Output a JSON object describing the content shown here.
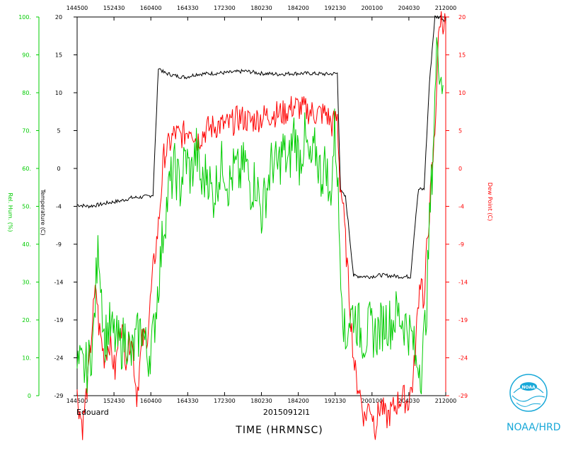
{
  "chart_data": {
    "type": "line",
    "x_ticks": [
      "144500",
      "152430",
      "160400",
      "164330",
      "172300",
      "180230",
      "184200",
      "192130",
      "200100",
      "204030",
      "212000"
    ],
    "left_axis_temp": {
      "label": "Temperature (C)",
      "ticks": [
        "20",
        "15",
        "10",
        "5",
        "0",
        "-4",
        "-9",
        "-14",
        "-19",
        "-24",
        "-29"
      ],
      "range": [
        -29,
        20
      ]
    },
    "left_axis_rh": {
      "label": "Rel. Hum. (%)",
      "ticks": [
        "100.",
        "90.",
        "80.",
        "70.",
        "60.",
        "50.",
        "40.",
        "30.",
        "20.",
        "10.",
        "0"
      ],
      "range": [
        0,
        100
      ],
      "color": "#00cc00"
    },
    "right_axis_dew": {
      "label": "Dew Point (C)",
      "ticks": [
        "20",
        "15",
        "10",
        "5",
        "0",
        "-4",
        "-9",
        "-14",
        "-19",
        "-24",
        "-29"
      ],
      "range": [
        -29,
        20
      ],
      "color": "#ff0000"
    },
    "xlabel": "TIME (HRMNSC)",
    "bottom_left_text": "Edouard",
    "bottom_center_text": "20150912I1",
    "series": [
      {
        "key": "temperature",
        "color": "#000000",
        "points": [
          [
            0,
            -4.3
          ],
          [
            2,
            -4.5
          ],
          [
            4,
            -4.3
          ],
          [
            6,
            -4.0
          ],
          [
            8,
            -3.8
          ],
          [
            10,
            -3.4
          ],
          [
            12,
            -3.3
          ],
          [
            13,
            -3.2
          ],
          [
            14,
            -3.0
          ],
          [
            15,
            13.5
          ],
          [
            16,
            12.8
          ],
          [
            18,
            12.4
          ],
          [
            20,
            12.2
          ],
          [
            22,
            12.6
          ],
          [
            25,
            12.7
          ],
          [
            28,
            12.8
          ],
          [
            31,
            13.0
          ],
          [
            34,
            12.7
          ],
          [
            37,
            12.6
          ],
          [
            40,
            12.7
          ],
          [
            43,
            12.7
          ],
          [
            46,
            12.6
          ],
          [
            48,
            12.7
          ],
          [
            48.6,
            -2.5
          ],
          [
            49.5,
            -3.3
          ],
          [
            50,
            -6.5
          ],
          [
            51,
            -13.5
          ],
          [
            54,
            -13.6
          ],
          [
            56,
            -13.4
          ],
          [
            58,
            -13.5
          ],
          [
            60,
            -13.6
          ],
          [
            61.5,
            -13.6
          ],
          [
            62.5,
            -5.5
          ],
          [
            63,
            -2.3
          ],
          [
            64,
            -2.3
          ],
          [
            65,
            11.5
          ],
          [
            66,
            20
          ],
          [
            67,
            20
          ],
          [
            68,
            19.5
          ]
        ]
      },
      {
        "key": "dew_point",
        "color": "#ff0000",
        "points": [
          [
            0,
            -29
          ],
          [
            1,
            -33
          ],
          [
            2,
            -27
          ],
          [
            3,
            -18
          ],
          [
            3.5,
            -15
          ],
          [
            4,
            -20
          ],
          [
            5,
            -24
          ],
          [
            6,
            -22
          ],
          [
            7,
            -26
          ],
          [
            8,
            -19
          ],
          [
            9,
            -24
          ],
          [
            10,
            -21
          ],
          [
            11,
            -29
          ],
          [
            12,
            -22
          ],
          [
            13,
            -21
          ],
          [
            14,
            -13
          ],
          [
            15,
            -7
          ],
          [
            16,
            2
          ],
          [
            17,
            3.5
          ],
          [
            18,
            5
          ],
          [
            19,
            4.5
          ],
          [
            20,
            5
          ],
          [
            21,
            6
          ],
          [
            22,
            4
          ],
          [
            24,
            5.5
          ],
          [
            26,
            6
          ],
          [
            28,
            6
          ],
          [
            30,
            7
          ],
          [
            32,
            6.5
          ],
          [
            34,
            7
          ],
          [
            36,
            7.5
          ],
          [
            38,
            7.5
          ],
          [
            40,
            8.5
          ],
          [
            42,
            8
          ],
          [
            44,
            7.5
          ],
          [
            46,
            7.5
          ],
          [
            47,
            6
          ],
          [
            48,
            7
          ],
          [
            48.5,
            -1.5
          ],
          [
            49,
            -4
          ],
          [
            49.5,
            -9
          ],
          [
            50,
            -14
          ],
          [
            50.5,
            -19
          ],
          [
            51,
            -24
          ],
          [
            51.5,
            -27
          ],
          [
            52,
            -28
          ],
          [
            53,
            -32
          ],
          [
            54,
            -30
          ],
          [
            55,
            -33
          ],
          [
            56,
            -30
          ],
          [
            57,
            -32
          ],
          [
            58,
            -31
          ],
          [
            59,
            -30
          ],
          [
            60,
            -29
          ],
          [
            61,
            -30
          ],
          [
            62,
            -27
          ],
          [
            62.5,
            -22
          ],
          [
            63,
            -16
          ],
          [
            63.5,
            -13
          ],
          [
            64,
            -18
          ],
          [
            64.5,
            -10
          ],
          [
            65,
            -5
          ],
          [
            66,
            5
          ],
          [
            66.5,
            15
          ],
          [
            67,
            20
          ],
          [
            68,
            19
          ]
        ]
      },
      {
        "key": "relative_humidity",
        "color": "#00cc00",
        "points": [
          [
            0,
            7.5
          ],
          [
            1,
            7.0
          ],
          [
            2,
            7.5
          ],
          [
            3,
            15
          ],
          [
            3.5,
            30
          ],
          [
            4,
            40
          ],
          [
            4.5,
            28
          ],
          [
            5,
            15
          ],
          [
            6,
            18
          ],
          [
            7,
            15
          ],
          [
            8,
            13
          ],
          [
            9,
            16
          ],
          [
            10,
            10
          ],
          [
            11,
            15
          ],
          [
            12,
            18
          ],
          [
            13,
            10
          ],
          [
            14,
            15
          ],
          [
            15,
            30
          ],
          [
            16,
            45
          ],
          [
            17,
            55
          ],
          [
            18,
            60
          ],
          [
            19,
            55
          ],
          [
            20,
            63
          ],
          [
            21,
            58
          ],
          [
            22,
            65
          ],
          [
            23,
            55
          ],
          [
            24,
            60
          ],
          [
            25,
            52
          ],
          [
            26,
            58
          ],
          [
            27,
            62
          ],
          [
            28,
            55
          ],
          [
            29,
            60
          ],
          [
            30,
            58
          ],
          [
            31,
            62
          ],
          [
            32,
            55
          ],
          [
            33,
            57
          ],
          [
            34,
            48
          ],
          [
            35,
            55
          ],
          [
            36,
            62
          ],
          [
            37,
            60
          ],
          [
            38,
            65
          ],
          [
            39,
            60
          ],
          [
            40,
            70
          ],
          [
            41,
            62
          ],
          [
            42,
            68
          ],
          [
            43,
            60
          ],
          [
            44,
            65
          ],
          [
            45,
            58
          ],
          [
            46,
            62
          ],
          [
            46.5,
            50
          ],
          [
            47,
            58
          ],
          [
            47.5,
            70
          ],
          [
            48,
            60
          ],
          [
            48.3,
            45
          ],
          [
            49,
            25
          ],
          [
            49.5,
            12
          ],
          [
            50,
            20
          ],
          [
            51,
            22
          ],
          [
            52,
            18
          ],
          [
            53,
            15
          ],
          [
            54,
            18
          ],
          [
            55,
            16
          ],
          [
            56,
            18
          ],
          [
            57,
            20
          ],
          [
            58,
            19
          ],
          [
            59,
            22
          ],
          [
            60,
            20
          ],
          [
            61,
            18
          ],
          [
            62,
            14
          ],
          [
            62.5,
            8
          ],
          [
            63,
            10
          ],
          [
            63.5,
            7
          ],
          [
            64,
            15
          ],
          [
            64.5,
            25
          ],
          [
            65,
            45
          ],
          [
            65.5,
            60
          ],
          [
            66,
            78
          ],
          [
            66.5,
            95
          ],
          [
            67,
            85
          ],
          [
            67.5,
            82
          ]
        ]
      }
    ]
  },
  "branding": {
    "logo_text": "NOAA",
    "org_label": "NOAA/HRD"
  }
}
